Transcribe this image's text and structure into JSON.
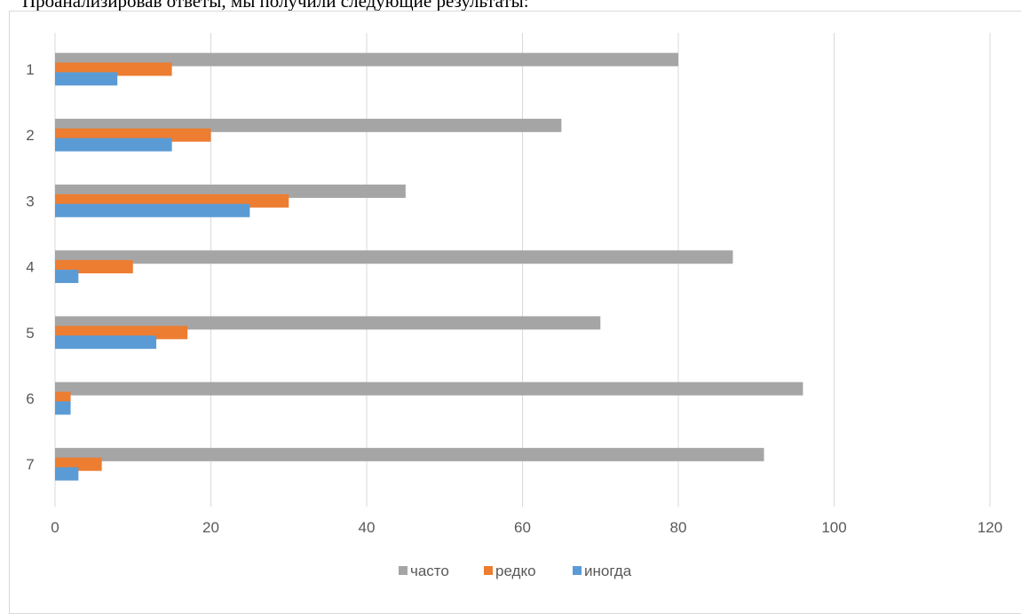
{
  "intro_text": "Проанализировав ответы, мы получили следующие результаты:",
  "chart_data": {
    "type": "bar",
    "orientation": "horizontal",
    "categories": [
      "1",
      "2",
      "3",
      "4",
      "5",
      "6",
      "7"
    ],
    "series": [
      {
        "name": "часто",
        "color": "#a5a5a5",
        "values": [
          80,
          65,
          45,
          87,
          70,
          96,
          91
        ]
      },
      {
        "name": "редко",
        "color": "#ed7d31",
        "values": [
          15,
          20,
          30,
          10,
          17,
          2,
          6
        ]
      },
      {
        "name": "иногда",
        "color": "#5b9bd5",
        "values": [
          8,
          15,
          25,
          3,
          13,
          2,
          3
        ]
      }
    ],
    "x_ticks": [
      "0",
      "20",
      "40",
      "60",
      "80",
      "100",
      "120"
    ],
    "xlim": [
      0,
      120
    ],
    "grid": true,
    "legend_position": "bottom"
  }
}
